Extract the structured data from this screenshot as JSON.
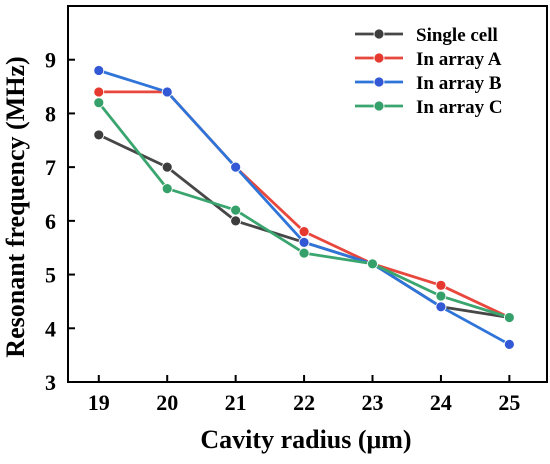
{
  "chart_data": {
    "type": "line",
    "title": "",
    "xlabel": "Cavity radius (μm)",
    "ylabel": "Resonant frequency (MHz)",
    "x": [
      19,
      20,
      21,
      22,
      23,
      24,
      25
    ],
    "xlim": [
      18.55,
      25.55
    ],
    "ylim": [
      3,
      10
    ],
    "x_ticks": [
      "19",
      "20",
      "21",
      "22",
      "23",
      "24",
      "25"
    ],
    "y_ticks": [
      "3",
      "4",
      "5",
      "6",
      "7",
      "8",
      "9"
    ],
    "grid": false,
    "legend_position": "top-right",
    "series": [
      {
        "name": "Single cell",
        "color": "#474747",
        "marker_color": "#3d3d3d",
        "values": [
          7.6,
          7.0,
          6.0,
          5.6,
          5.2,
          4.4,
          4.2
        ]
      },
      {
        "name": "In array A",
        "color": "#e8473d",
        "marker_color": "#e5392f",
        "values": [
          8.4,
          8.4,
          7.0,
          5.8,
          5.2,
          4.8,
          4.2
        ]
      },
      {
        "name": "In array B",
        "color": "#2f74d9",
        "marker_color": "#3358d6",
        "values": [
          8.8,
          8.4,
          7.0,
          5.6,
          5.2,
          4.4,
          3.7
        ]
      },
      {
        "name": "In array C",
        "color": "#3aa56f",
        "marker_color": "#35a06a",
        "values": [
          8.2,
          6.6,
          6.2,
          5.4,
          5.2,
          4.6,
          4.2
        ]
      }
    ]
  }
}
